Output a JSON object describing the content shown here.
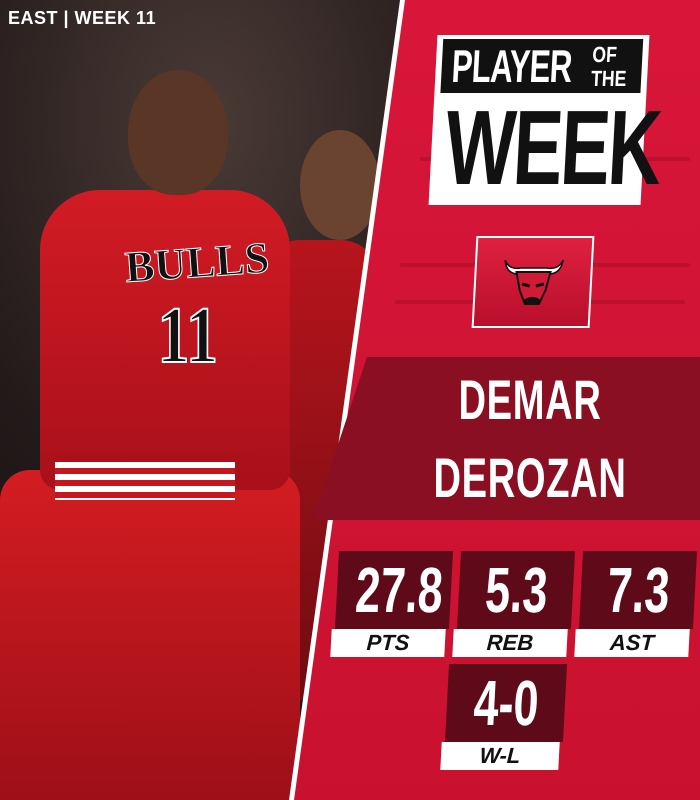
{
  "conference_week": "EAST | WEEK 11",
  "title": {
    "line1": "PLAYER",
    "of": "OF",
    "the": "THE",
    "line2": "WEEK"
  },
  "team": {
    "name": "Chicago Bulls",
    "logo_icon": "bulls-logo-icon"
  },
  "jersey": {
    "text": "BULLS",
    "number": "11"
  },
  "player": {
    "first": "DEMAR",
    "last": "DEROZAN"
  },
  "stats": [
    {
      "value": "27.8",
      "label": "PTS"
    },
    {
      "value": "5.3",
      "label": "REB"
    },
    {
      "value": "7.3",
      "label": "AST"
    },
    {
      "value": "4-0",
      "label": "W-L"
    }
  ],
  "colors": {
    "panel": "#d8163a",
    "band": "#8a0f22",
    "stat_box": "#5e0a18",
    "label_bg": "#ffffff"
  }
}
